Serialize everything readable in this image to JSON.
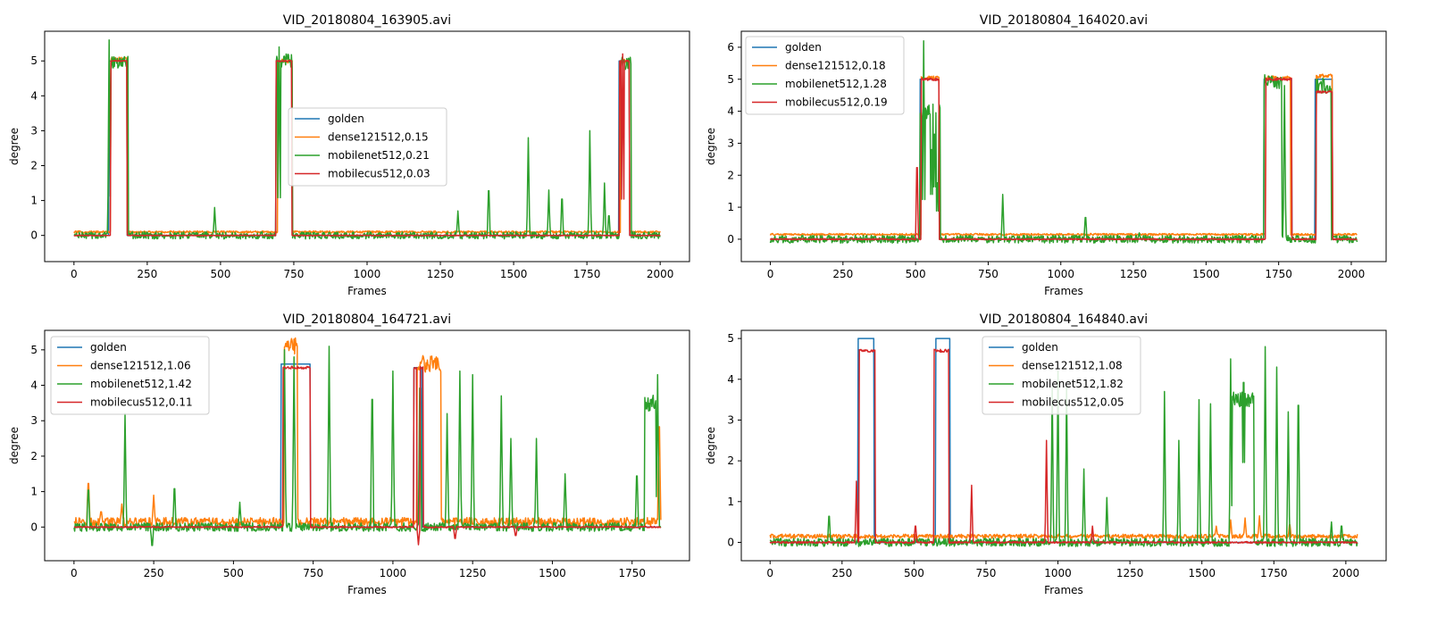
{
  "chart_data": [
    {
      "type": "line",
      "title": "VID_20180804_163905.avi",
      "xlabel": "Frames",
      "ylabel": "degree",
      "xlim": [
        -100,
        2100
      ],
      "ylim": [
        -0.75,
        5.85
      ],
      "xticks": [
        0,
        250,
        500,
        750,
        1000,
        1250,
        1500,
        1750,
        2000
      ],
      "yticks": [
        0,
        1,
        2,
        3,
        4,
        5
      ],
      "legend_position": "center",
      "grid": false,
      "frames": 2000,
      "series": [
        {
          "name": "golden",
          "color": "#1f77b4",
          "base": 0.0,
          "segments": [
            [
              120,
              180,
              5.0
            ],
            [
              690,
              745,
              5.0
            ],
            [
              1860,
              1895,
              5.0
            ]
          ],
          "noise": 0.0
        },
        {
          "name": "dense121512,0.15",
          "color": "#ff7f0e",
          "base": 0.1,
          "segments": [
            [
              125,
              180,
              5.05
            ],
            [
              695,
              745,
              5.0
            ],
            [
              1865,
              1895,
              5.0
            ]
          ],
          "noise": 0.03
        },
        {
          "name": "mobilenet512,0.21",
          "color": "#2ca02c",
          "base": 0.0,
          "segments": [
            [
              122,
              185,
              4.95
            ],
            [
              690,
              745,
              5.0
            ],
            [
              1862,
              1900,
              4.95
            ]
          ],
          "noise": 0.1,
          "spikes": [
            [
              120,
              5.6
            ],
            [
              480,
              0.8
            ],
            [
              700,
              5.4
            ],
            [
              1310,
              0.7
            ],
            [
              1415,
              1.6
            ],
            [
              1550,
              2.8
            ],
            [
              1620,
              1.3
            ],
            [
              1665,
              1.3
            ],
            [
              1760,
              3.0
            ],
            [
              1810,
              1.5
            ],
            [
              1825,
              0.7
            ]
          ]
        },
        {
          "name": "mobilecus512,0.03",
          "color": "#d62728",
          "base": 0.0,
          "segments": [
            [
              125,
              180,
              5.0
            ],
            [
              690,
              742,
              5.0
            ],
            [
              1862,
              1895,
              5.0
            ]
          ],
          "noise": 0.01,
          "spikes": [
            [
              1872,
              5.2
            ]
          ]
        }
      ]
    },
    {
      "type": "line",
      "title": "VID_20180804_164020.avi",
      "xlabel": "Frames",
      "ylabel": "degree",
      "xlim": [
        -100,
        2120
      ],
      "ylim": [
        -0.7,
        6.5
      ],
      "xticks": [
        0,
        250,
        500,
        750,
        1000,
        1250,
        1500,
        1750,
        2000
      ],
      "yticks": [
        0,
        1,
        2,
        3,
        4,
        5,
        6
      ],
      "legend_position": "upper left",
      "grid": false,
      "frames": 2020,
      "series": [
        {
          "name": "golden",
          "color": "#1f77b4",
          "base": 0.0,
          "segments": [
            [
              515,
              580,
              5.0
            ],
            [
              1700,
              1795,
              5.0
            ],
            [
              1875,
              1935,
              5.0
            ]
          ],
          "noise": 0.0
        },
        {
          "name": "dense121512,0.18",
          "color": "#ff7f0e",
          "base": 0.15,
          "segments": [
            [
              520,
              580,
              5.05
            ],
            [
              1705,
              1790,
              5.05
            ],
            [
              1880,
              1935,
              5.1
            ]
          ],
          "noise": 0.03
        },
        {
          "name": "mobilenet512,1.28",
          "color": "#2ca02c",
          "base": 0.0,
          "segments": [
            [
              515,
              585,
              4.0
            ],
            [
              1700,
              1760,
              4.9
            ],
            [
              1880,
              1930,
              4.8
            ]
          ],
          "noise": 0.12,
          "spikes": [
            [
              528,
              6.2
            ],
            [
              555,
              3.5
            ],
            [
              565,
              4.1
            ],
            [
              575,
              2.2
            ],
            [
              800,
              1.4
            ],
            [
              1085,
              0.85
            ],
            [
              1270,
              0.2
            ],
            [
              1770,
              4.8
            ]
          ]
        },
        {
          "name": "mobilecus512,0.19",
          "color": "#d62728",
          "base": 0.0,
          "segments": [
            [
              520,
              580,
              5.0
            ],
            [
              1705,
              1795,
              5.0
            ],
            [
              1880,
              1935,
              4.6
            ]
          ],
          "noise": 0.02,
          "spikes": [
            [
              505,
              2.8
            ]
          ]
        }
      ]
    },
    {
      "type": "line",
      "title": "VID_20180804_164721.avi",
      "xlabel": "Frames",
      "ylabel": "degree",
      "xlim": [
        -92,
        1930
      ],
      "ylim": [
        -0.95,
        5.55
      ],
      "xticks": [
        0,
        250,
        500,
        750,
        1000,
        1250,
        1500,
        1750
      ],
      "yticks": [
        0,
        1,
        2,
        3,
        4,
        5
      ],
      "legend_position": "upper left",
      "grid": false,
      "frames": 1840,
      "series": [
        {
          "name": "golden",
          "color": "#1f77b4",
          "base": 0.0,
          "segments": [
            [
              650,
              740,
              4.6
            ],
            [
              1065,
              1090,
              4.5
            ]
          ],
          "noise": 0.0
        },
        {
          "name": "dense121512,1.06",
          "color": "#ff7f0e",
          "base": 0.15,
          "segments": [
            [
              660,
              700,
              5.1
            ],
            [
              1075,
              1150,
              4.6
            ]
          ],
          "noise": 0.12,
          "spikes": [
            [
              45,
              1.5
            ],
            [
              85,
              0.5
            ],
            [
              150,
              0.65
            ],
            [
              250,
              0.9
            ],
            [
              1835,
              3.5
            ]
          ]
        },
        {
          "name": "mobilenet512,1.42",
          "color": "#2ca02c",
          "base": 0.0,
          "segments": [
            [
              1790,
              1835,
              3.5
            ]
          ],
          "noise": 0.12,
          "spikes": [
            [
              45,
              1.3
            ],
            [
              160,
              3.2
            ],
            [
              245,
              -0.65
            ],
            [
              315,
              1.35
            ],
            [
              520,
              0.7
            ],
            [
              660,
              5.0
            ],
            [
              690,
              4.8
            ],
            [
              800,
              5.1
            ],
            [
              935,
              4.5
            ],
            [
              1000,
              4.4
            ],
            [
              1085,
              4.9
            ],
            [
              1170,
              3.2
            ],
            [
              1210,
              4.4
            ],
            [
              1250,
              4.3
            ],
            [
              1340,
              3.7
            ],
            [
              1370,
              2.5
            ],
            [
              1450,
              2.5
            ],
            [
              1540,
              1.5
            ],
            [
              1765,
              1.8
            ],
            [
              1830,
              4.3
            ]
          ]
        },
        {
          "name": "mobilecus512,0.11",
          "color": "#d62728",
          "base": 0.0,
          "segments": [
            [
              655,
              740,
              4.5
            ],
            [
              1065,
              1095,
              4.5
            ]
          ],
          "noise": 0.02,
          "spikes": [
            [
              1080,
              -0.5
            ],
            [
              1195,
              -0.4
            ],
            [
              1385,
              -0.3
            ]
          ]
        }
      ]
    },
    {
      "type": "line",
      "title": "VID_20180804_164840.avi",
      "xlabel": "Frames",
      "ylabel": "degree",
      "xlim": [
        -100,
        2140
      ],
      "ylim": [
        -0.45,
        5.2
      ],
      "xticks": [
        0,
        250,
        500,
        750,
        1000,
        1250,
        1500,
        1750,
        2000
      ],
      "yticks": [
        0,
        1,
        2,
        3,
        4,
        5
      ],
      "legend_position": "upper center",
      "grid": false,
      "frames": 2040,
      "series": [
        {
          "name": "golden",
          "color": "#1f77b4",
          "base": 0.0,
          "segments": [
            [
              305,
              360,
              5.0
            ],
            [
              575,
              625,
              5.0
            ]
          ],
          "noise": 0.0
        },
        {
          "name": "dense121512,1.08",
          "color": "#ff7f0e",
          "base": 0.15,
          "segments": [],
          "noise": 0.05,
          "spikes": [
            [
              1550,
              0.4
            ],
            [
              1600,
              0.55
            ],
            [
              1650,
              0.6
            ],
            [
              1700,
              0.65
            ],
            [
              1805,
              0.5
            ]
          ]
        },
        {
          "name": "mobilenet512,1.82",
          "color": "#2ca02c",
          "base": 0.0,
          "segments": [
            [
              1600,
              1680,
              3.5
            ]
          ],
          "noise": 0.1,
          "spikes": [
            [
              205,
              0.8
            ],
            [
              980,
              3.8
            ],
            [
              1000,
              4.2
            ],
            [
              1030,
              3.8
            ],
            [
              1090,
              1.8
            ],
            [
              1170,
              1.1
            ],
            [
              1370,
              3.7
            ],
            [
              1420,
              2.5
            ],
            [
              1490,
              3.5
            ],
            [
              1530,
              3.4
            ],
            [
              1600,
              4.5
            ],
            [
              1645,
              4.9
            ],
            [
              1720,
              4.8
            ],
            [
              1760,
              4.3
            ],
            [
              1800,
              3.2
            ],
            [
              1835,
              4.2
            ],
            [
              1950,
              0.5
            ],
            [
              1985,
              0.5
            ]
          ]
        },
        {
          "name": "mobilecus512,0.05",
          "color": "#d62728",
          "base": 0.0,
          "segments": [
            [
              310,
              365,
              4.7
            ],
            [
              570,
              620,
              4.7
            ]
          ],
          "noise": 0.02,
          "spikes": [
            [
              300,
              1.5
            ],
            [
              505,
              0.5
            ],
            [
              700,
              1.4
            ],
            [
              960,
              2.5
            ],
            [
              1120,
              0.4
            ]
          ]
        }
      ]
    }
  ]
}
